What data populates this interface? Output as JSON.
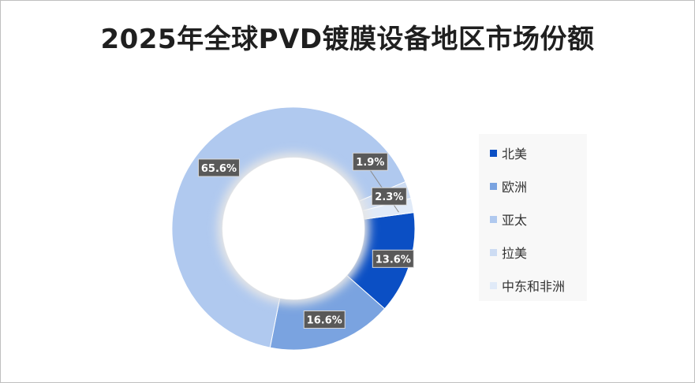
{
  "chart_data": {
    "type": "pie",
    "title": "2025年全球PVD镀膜设备地区市场份额",
    "categories": [
      "北美",
      "欧洲",
      "亚太",
      "拉美",
      "中东和非洲"
    ],
    "values": [
      13.6,
      16.6,
      65.6,
      2.3,
      1.9
    ],
    "data_labels": [
      "13.6%",
      "16.6%",
      "65.6%",
      "2.3%",
      "1.9%"
    ],
    "colors": [
      "#0b4fc4",
      "#7aa3e0",
      "#b0c9ef",
      "#cddcf3",
      "#e0eaf8"
    ],
    "legend_position": "right"
  }
}
